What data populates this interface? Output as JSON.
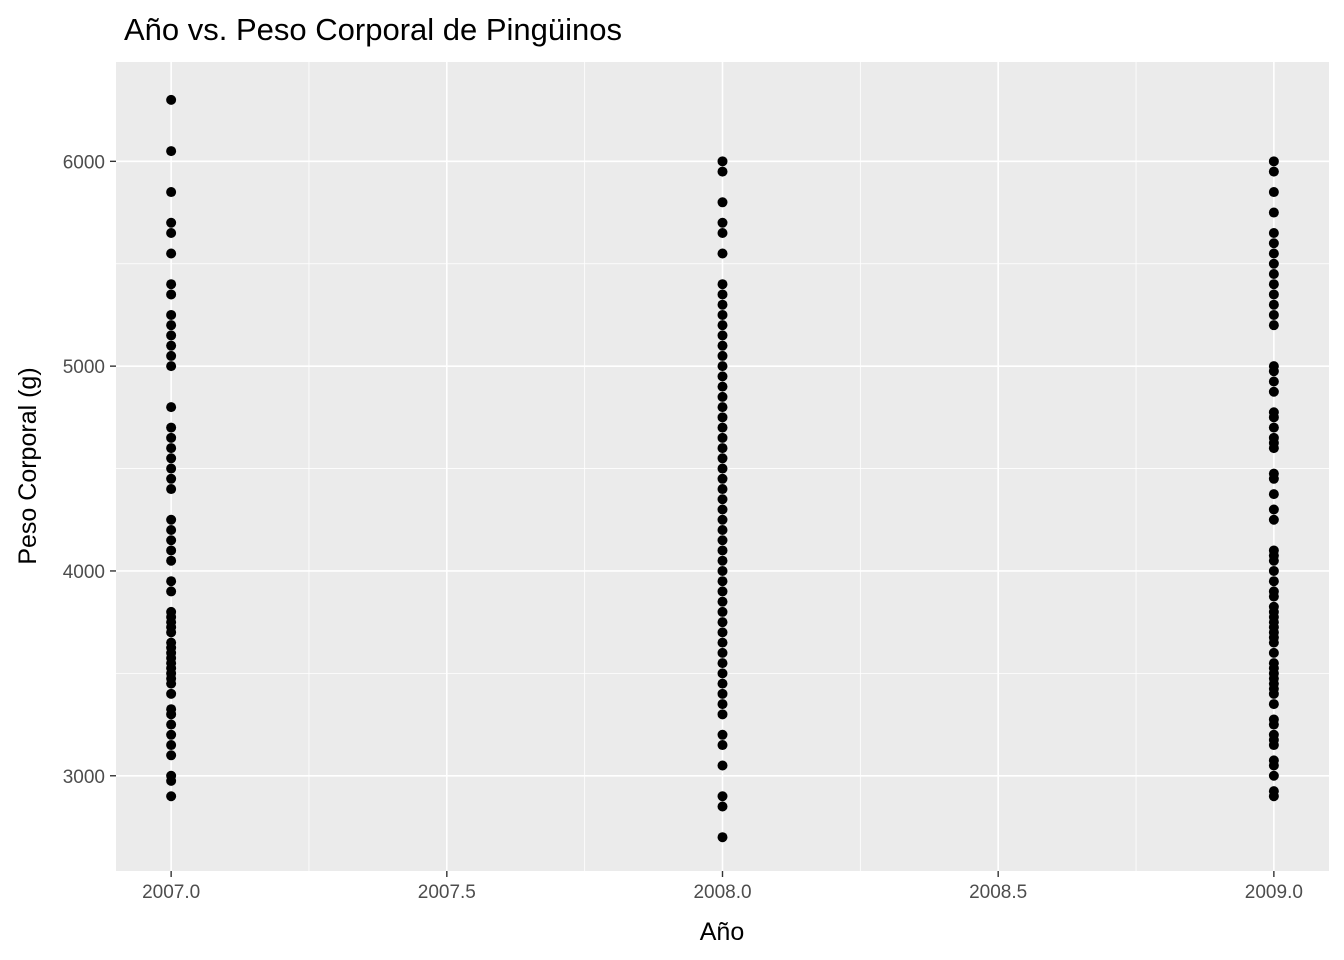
{
  "chart_data": {
    "type": "scatter",
    "title": "Año vs. Peso Corporal de Pingüinos",
    "xlabel": "Año",
    "ylabel": "Peso Corporal (g)",
    "xlim": [
      2006.9,
      2009.1
    ],
    "ylim": [
      2535,
      6485
    ],
    "x_ticks": [
      2007.0,
      2007.5,
      2008.0,
      2008.5,
      2009.0
    ],
    "x_tick_labels": [
      "2007.0",
      "2007.5",
      "2008.0",
      "2008.5",
      "2009.0"
    ],
    "y_ticks": [
      3000,
      4000,
      5000,
      6000
    ],
    "y_tick_labels": [
      "3000",
      "4000",
      "5000",
      "6000"
    ],
    "grid": true,
    "colors": {
      "panel": "#ebebeb",
      "grid": "#ffffff",
      "point": "#000000"
    },
    "series": [
      {
        "x": 2007,
        "values": [
          2900,
          2975,
          3000,
          3100,
          3150,
          3200,
          3250,
          3300,
          3325,
          3400,
          3450,
          3475,
          3500,
          3525,
          3550,
          3575,
          3600,
          3625,
          3650,
          3700,
          3725,
          3750,
          3775,
          3800,
          3900,
          3950,
          4050,
          4100,
          4150,
          4200,
          4250,
          4400,
          4450,
          4500,
          4550,
          4600,
          4650,
          4700,
          4800,
          5000,
          5050,
          5100,
          5150,
          5200,
          5250,
          5350,
          5400,
          5550,
          5650,
          5700,
          5850,
          6050,
          6300
        ]
      },
      {
        "x": 2008,
        "values": [
          2700,
          2850,
          2900,
          3050,
          3150,
          3200,
          3300,
          3350,
          3400,
          3450,
          3500,
          3550,
          3600,
          3650,
          3700,
          3750,
          3800,
          3850,
          3900,
          3950,
          4000,
          4050,
          4100,
          4150,
          4200,
          4250,
          4300,
          4350,
          4400,
          4450,
          4500,
          4550,
          4600,
          4650,
          4700,
          4750,
          4800,
          4850,
          4900,
          4950,
          5000,
          5050,
          5100,
          5150,
          5200,
          5250,
          5300,
          5350,
          5400,
          5550,
          5650,
          5700,
          5800,
          5950,
          6000
        ]
      },
      {
        "x": 2009,
        "values": [
          2900,
          2925,
          3000,
          3050,
          3075,
          3150,
          3175,
          3200,
          3250,
          3275,
          3350,
          3400,
          3425,
          3450,
          3475,
          3500,
          3525,
          3550,
          3600,
          3650,
          3675,
          3700,
          3725,
          3750,
          3775,
          3800,
          3825,
          3875,
          3900,
          3950,
          4000,
          4050,
          4075,
          4100,
          4250,
          4300,
          4375,
          4450,
          4475,
          4600,
          4625,
          4650,
          4700,
          4750,
          4775,
          4875,
          4925,
          4975,
          5000,
          5200,
          5250,
          5300,
          5350,
          5400,
          5450,
          5500,
          5550,
          5600,
          5650,
          5750,
          5850,
          5950,
          6000
        ]
      }
    ]
  }
}
